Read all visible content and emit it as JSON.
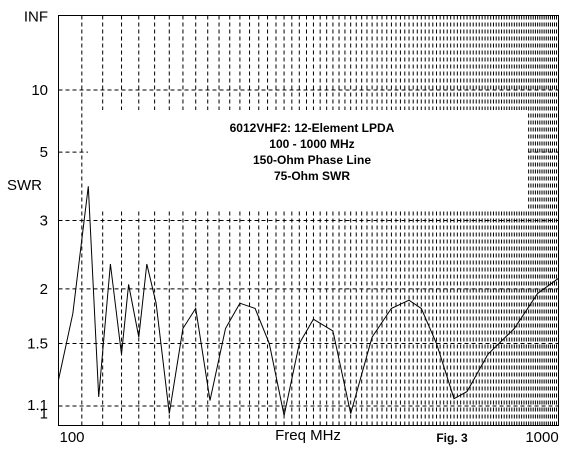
{
  "chart_data": {
    "type": "line",
    "x_scale": "log",
    "y_scale": "swr",
    "xlabel": "Freq MHz",
    "ylabel": "SWR",
    "xlim": [
      80,
      1000
    ],
    "ylim": [
      1,
      "INF"
    ],
    "x_tick_labels": [
      "100",
      "1000"
    ],
    "y_ticks": [
      {
        "label": "INF",
        "value": null
      },
      {
        "label": "10",
        "value": 10
      },
      {
        "label": "5",
        "value": 5
      },
      {
        "label": "3",
        "value": 3
      },
      {
        "label": "2",
        "value": 2
      },
      {
        "label": "1.5",
        "value": 1.5
      },
      {
        "label": "1.1",
        "value": 1.1
      },
      {
        "label": "1",
        "value": 1
      }
    ],
    "grid": "dashed",
    "annotation": [
      "6012VHF2:  12-Element LPDA",
      "100 - 1000 MHz",
      "150-Ohm Phase Line",
      "75-Ohm SWR"
    ],
    "figure_label": "Fig. 3",
    "series": [
      {
        "x": [
          80,
          86,
          93,
          98,
          104,
          110,
          114,
          120,
          125,
          131,
          140,
          150,
          160,
          172,
          186,
          200,
          216,
          232,
          250,
          270,
          290,
          320,
          350,
          390,
          430,
          470,
          500,
          540,
          590,
          630,
          700,
          800,
          900,
          1000
        ],
        "y": [
          1.25,
          1.75,
          3.8,
          1.15,
          2.3,
          1.42,
          2.05,
          1.55,
          2.3,
          1.85,
          1.06,
          1.62,
          1.8,
          1.13,
          1.62,
          1.85,
          1.8,
          1.5,
          1.05,
          1.5,
          1.7,
          1.6,
          1.06,
          1.55,
          1.8,
          1.88,
          1.8,
          1.5,
          1.14,
          1.18,
          1.42,
          1.62,
          1.95,
          2.12
        ]
      }
    ],
    "line_color": "#000000"
  }
}
